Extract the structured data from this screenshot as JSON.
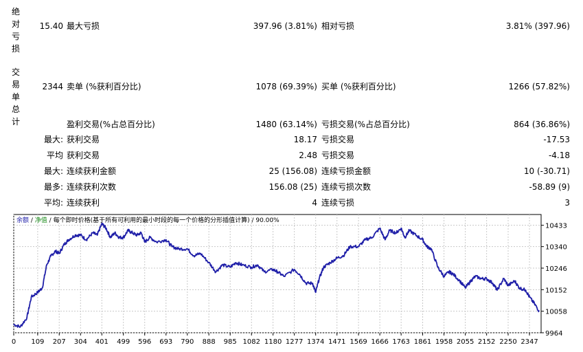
{
  "side_labels": {
    "group1": [
      "绝",
      "对",
      "亏",
      "损"
    ],
    "group2": [
      "交",
      "易",
      "单",
      "总",
      "计"
    ]
  },
  "rows": [
    {
      "prefix": "",
      "left_num": "15.40",
      "left_label": "最大亏损",
      "mid_value": "397.96 (3.81%)",
      "right_label": "相对亏损",
      "right_value": "3.81% (397.96)"
    },
    {
      "prefix": "",
      "left_num": "2344",
      "left_label": "卖单 (%获利百分比)",
      "mid_value": "1078 (69.39%)",
      "right_label": "买单 (%获利百分比)",
      "right_value": "1266 (57.82%)"
    },
    {
      "prefix": "",
      "left_num": "",
      "left_label": "盈利交易(%占总百分比)",
      "mid_value": "1480 (63.14%)",
      "right_label": "亏损交易(%占总百分比)",
      "right_value": "864 (36.86%)"
    },
    {
      "prefix": "最大:",
      "left_num": "",
      "left_label": "获利交易",
      "mid_value": "18.17",
      "right_label": "亏损交易",
      "right_value": "-17.53"
    },
    {
      "prefix": "平均",
      "left_num": "",
      "left_label": "获利交易",
      "mid_value": "2.48",
      "right_label": "亏损交易",
      "right_value": "-4.18"
    },
    {
      "prefix": "最大:",
      "left_num": "",
      "left_label": "连续获利金额",
      "mid_value": "25 (156.08)",
      "right_label": "连续亏损金额",
      "right_value": "10 (-30.71)"
    },
    {
      "prefix": "最多:",
      "left_num": "",
      "left_label": "连续获利次数",
      "mid_value": "156.08 (25)",
      "right_label": "连续亏损次数",
      "right_value": "-58.89 (9)"
    },
    {
      "prefix": "平均:",
      "left_num": "",
      "left_label": "连续获利",
      "mid_value": "4",
      "right_label": "连续亏损",
      "right_value": "3"
    }
  ],
  "chart_data": {
    "type": "line",
    "legend": {
      "balance": "余额",
      "sep1": " / ",
      "equity": "净值",
      "sep2": " / ",
      "rest": "每个即时价格(基于所有可利用的最小时段的每一个价格的分形插值计算) / 90.00%"
    },
    "colors": {
      "balance": "#1f1fa8",
      "equity": "#1a8a1a",
      "grid": "#c8c8c8",
      "axis": "#000000"
    },
    "xlim": [
      0,
      2400
    ],
    "ylim": [
      9964,
      10480
    ],
    "x_ticks": [
      0,
      109,
      207,
      304,
      401,
      499,
      596,
      693,
      790,
      888,
      985,
      1082,
      1180,
      1277,
      1374,
      1471,
      1569,
      1666,
      1763,
      1861,
      1958,
      2055,
      2152,
      2250,
      2347
    ],
    "y_ticks": [
      9964,
      10058,
      10152,
      10246,
      10340,
      10433
    ],
    "series": [
      {
        "x": [
          0,
          30,
          60,
          80,
          109,
          130,
          150,
          170,
          190,
          207,
          230,
          250,
          280,
          304,
          330,
          360,
          380,
          401,
          420,
          440,
          460,
          480,
          499,
          520,
          540,
          560,
          580,
          596,
          620,
          650,
          693,
          720,
          750,
          790,
          820,
          850,
          888,
          920,
          950,
          985,
          1010,
          1040,
          1082,
          1110,
          1140,
          1180,
          1200,
          1230,
          1277,
          1300,
          1330,
          1360,
          1374,
          1390,
          1410,
          1440,
          1471,
          1500,
          1530,
          1569,
          1600,
          1630,
          1666,
          1690,
          1710,
          1740,
          1763,
          1780,
          1800,
          1830,
          1861,
          1880,
          1900,
          1930,
          1958,
          1980,
          2000,
          2030,
          2055,
          2080,
          2100,
          2130,
          2152,
          2180,
          2200,
          2230,
          2250,
          2280,
          2300,
          2330,
          2347,
          2370,
          2390
        ],
        "values": [
          10000,
          9990,
          10030,
          10120,
          10140,
          10160,
          10260,
          10300,
          10320,
          10310,
          10350,
          10370,
          10390,
          10390,
          10370,
          10400,
          10390,
          10440,
          10420,
          10380,
          10400,
          10380,
          10380,
          10410,
          10400,
          10390,
          10400,
          10360,
          10380,
          10360,
          10370,
          10340,
          10330,
          10330,
          10300,
          10310,
          10270,
          10230,
          10260,
          10250,
          10270,
          10260,
          10250,
          10260,
          10230,
          10240,
          10230,
          10210,
          10240,
          10220,
          10180,
          10180,
          10140,
          10200,
          10250,
          10270,
          10290,
          10300,
          10340,
          10340,
          10370,
          10380,
          10420,
          10370,
          10410,
          10400,
          10420,
          10380,
          10410,
          10390,
          10370,
          10340,
          10330,
          10250,
          10210,
          10230,
          10220,
          10190,
          10160,
          10190,
          10210,
          10200,
          10200,
          10180,
          10150,
          10200,
          10170,
          10190,
          10160,
          10150,
          10120,
          10090,
          10060
        ]
      }
    ]
  }
}
